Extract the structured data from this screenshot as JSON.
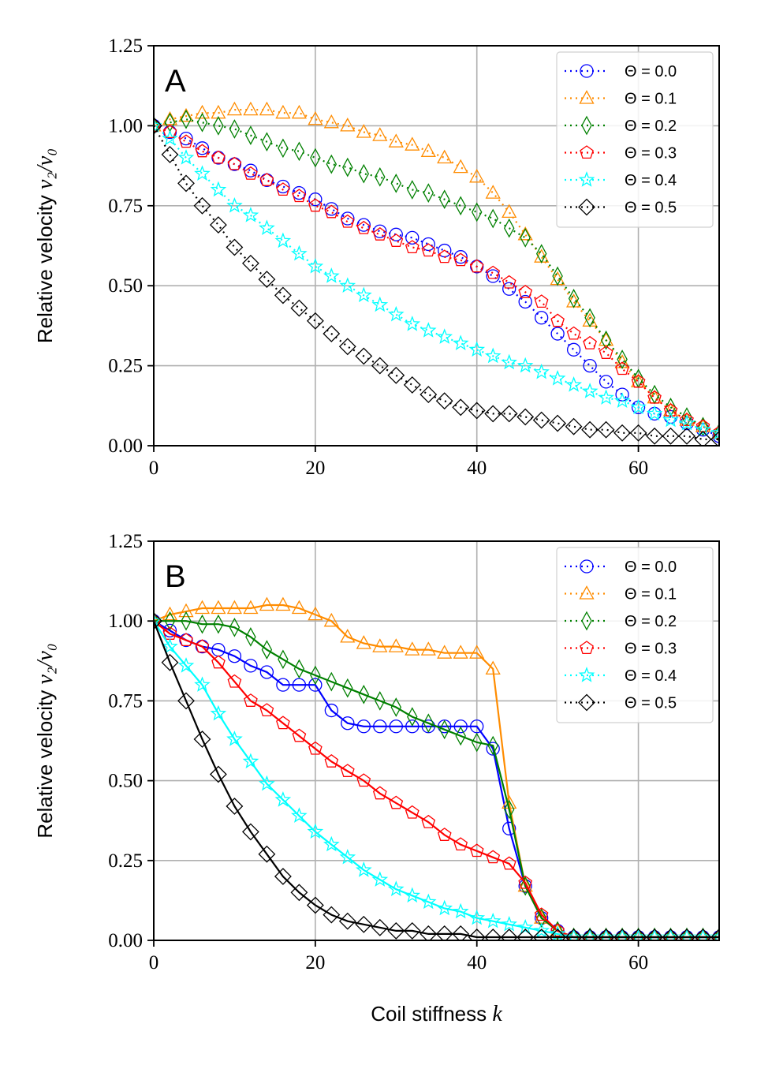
{
  "chart_data": [
    {
      "type": "line",
      "panel_label": "A",
      "ylabel_prefix": "Relative velocity ",
      "ylabel_math": "v₂/v₀",
      "xlabel_prefix": "",
      "xlabel_math": "",
      "xlim": [
        0,
        70
      ],
      "ylim": [
        0,
        1.25
      ],
      "xticks": [
        "0",
        "20",
        "40",
        "60"
      ],
      "xtick_values": [
        0,
        20,
        40,
        60
      ],
      "yticks": [
        "0.00",
        "0.25",
        "0.50",
        "0.75",
        "1.00",
        "1.25"
      ],
      "ytick_values": [
        0,
        0.25,
        0.5,
        0.75,
        1.0,
        1.25
      ],
      "grid": true,
      "legend_position": "top-right",
      "solid_fit": false,
      "x": [
        0,
        2,
        4,
        6,
        8,
        10,
        12,
        14,
        16,
        18,
        20,
        22,
        24,
        26,
        28,
        30,
        32,
        34,
        36,
        38,
        40,
        42,
        44,
        46,
        48,
        50,
        52,
        54,
        56,
        58,
        60,
        62,
        64,
        66,
        68,
        70
      ],
      "series": [
        {
          "name": "Θ = 0.0",
          "color": "#0000ff",
          "marker": "circle",
          "values": [
            1.0,
            0.98,
            0.96,
            0.93,
            0.9,
            0.88,
            0.86,
            0.83,
            0.81,
            0.79,
            0.77,
            0.74,
            0.71,
            0.69,
            0.67,
            0.66,
            0.65,
            0.63,
            0.61,
            0.59,
            0.56,
            0.53,
            0.49,
            0.45,
            0.4,
            0.35,
            0.3,
            0.25,
            0.2,
            0.16,
            0.12,
            0.1,
            0.09,
            0.07,
            0.05,
            0.03
          ]
        },
        {
          "name": "Θ = 0.1",
          "color": "#ff8c00",
          "marker": "triangle",
          "values": [
            1.0,
            1.02,
            1.03,
            1.04,
            1.04,
            1.05,
            1.05,
            1.05,
            1.04,
            1.04,
            1.02,
            1.01,
            1.0,
            0.98,
            0.97,
            0.95,
            0.94,
            0.92,
            0.9,
            0.87,
            0.84,
            0.79,
            0.73,
            0.66,
            0.59,
            0.52,
            0.45,
            0.39,
            0.33,
            0.26,
            0.2,
            0.15,
            0.11,
            0.08,
            0.06,
            0.04
          ]
        },
        {
          "name": "Θ = 0.2",
          "color": "#008000",
          "marker": "thin-diamond",
          "values": [
            1.0,
            1.01,
            1.02,
            1.01,
            1.0,
            0.99,
            0.97,
            0.95,
            0.93,
            0.92,
            0.9,
            0.88,
            0.87,
            0.85,
            0.84,
            0.82,
            0.8,
            0.79,
            0.77,
            0.75,
            0.73,
            0.71,
            0.68,
            0.65,
            0.6,
            0.53,
            0.46,
            0.4,
            0.33,
            0.27,
            0.21,
            0.16,
            0.12,
            0.09,
            0.06,
            0.04
          ]
        },
        {
          "name": "Θ = 0.3",
          "color": "#ff0000",
          "marker": "pentagon",
          "values": [
            1.0,
            0.98,
            0.95,
            0.92,
            0.9,
            0.88,
            0.85,
            0.83,
            0.8,
            0.78,
            0.75,
            0.73,
            0.7,
            0.68,
            0.66,
            0.64,
            0.62,
            0.61,
            0.59,
            0.58,
            0.56,
            0.54,
            0.51,
            0.48,
            0.45,
            0.39,
            0.35,
            0.32,
            0.29,
            0.24,
            0.2,
            0.15,
            0.11,
            0.08,
            0.06,
            0.04
          ]
        },
        {
          "name": "Θ = 0.4",
          "color": "#00ffff",
          "marker": "star",
          "values": [
            1.0,
            0.96,
            0.9,
            0.85,
            0.8,
            0.75,
            0.72,
            0.68,
            0.64,
            0.6,
            0.56,
            0.53,
            0.5,
            0.47,
            0.44,
            0.41,
            0.38,
            0.36,
            0.34,
            0.32,
            0.3,
            0.28,
            0.26,
            0.25,
            0.23,
            0.21,
            0.19,
            0.17,
            0.15,
            0.14,
            0.12,
            0.1,
            0.08,
            0.07,
            0.05,
            0.04
          ]
        },
        {
          "name": "Θ = 0.5",
          "color": "#000000",
          "marker": "diamond",
          "values": [
            1.0,
            0.91,
            0.82,
            0.75,
            0.69,
            0.62,
            0.57,
            0.52,
            0.47,
            0.43,
            0.39,
            0.35,
            0.31,
            0.28,
            0.25,
            0.22,
            0.19,
            0.16,
            0.14,
            0.12,
            0.11,
            0.1,
            0.1,
            0.09,
            0.08,
            0.07,
            0.06,
            0.05,
            0.05,
            0.04,
            0.04,
            0.03,
            0.03,
            0.03,
            0.02,
            0.02
          ]
        }
      ]
    },
    {
      "type": "line",
      "panel_label": "B",
      "ylabel_prefix": "Relative velocity ",
      "ylabel_math": "v₂/v₀",
      "xlabel_prefix": "Coil stiffness ",
      "xlabel_math": "k",
      "xlim": [
        0,
        70
      ],
      "ylim": [
        0,
        1.25
      ],
      "xticks": [
        "0",
        "20",
        "40",
        "60"
      ],
      "xtick_values": [
        0,
        20,
        40,
        60
      ],
      "yticks": [
        "0.00",
        "0.25",
        "0.50",
        "0.75",
        "1.00",
        "1.25"
      ],
      "ytick_values": [
        0,
        0.25,
        0.5,
        0.75,
        1.0,
        1.25
      ],
      "grid": true,
      "legend_position": "top-right",
      "solid_fit": true,
      "x": [
        0,
        2,
        4,
        6,
        8,
        10,
        12,
        14,
        16,
        18,
        20,
        22,
        24,
        26,
        28,
        30,
        32,
        34,
        36,
        38,
        40,
        42,
        44,
        46,
        48,
        50,
        52,
        54,
        56,
        58,
        60,
        62,
        64,
        66,
        68,
        70
      ],
      "series": [
        {
          "name": "Θ = 0.0",
          "color": "#0000ff",
          "marker": "circle",
          "values": [
            1.0,
            0.97,
            0.94,
            0.92,
            0.91,
            0.89,
            0.86,
            0.84,
            0.8,
            0.8,
            0.8,
            0.72,
            0.68,
            0.67,
            0.67,
            0.67,
            0.67,
            0.67,
            0.67,
            0.67,
            0.67,
            0.6,
            0.35,
            0.17,
            0.07,
            0.03,
            0.01,
            0.01,
            0.01,
            0.01,
            0.01,
            0.01,
            0.01,
            0.01,
            0.01,
            0.01
          ]
        },
        {
          "name": "Θ = 0.1",
          "color": "#ff8c00",
          "marker": "triangle",
          "values": [
            1.0,
            1.02,
            1.03,
            1.04,
            1.04,
            1.04,
            1.04,
            1.05,
            1.05,
            1.04,
            1.02,
            1.0,
            0.95,
            0.93,
            0.92,
            0.92,
            0.91,
            0.91,
            0.9,
            0.9,
            0.9,
            0.85,
            0.43,
            0.17,
            0.07,
            0.03,
            0.01,
            0.01,
            0.01,
            0.01,
            0.01,
            0.01,
            0.01,
            0.01,
            0.01,
            0.01
          ]
        },
        {
          "name": "Θ = 0.2",
          "color": "#008000",
          "marker": "thin-diamond",
          "values": [
            1.0,
            1.0,
            1.0,
            0.99,
            0.99,
            0.98,
            0.95,
            0.91,
            0.88,
            0.85,
            0.83,
            0.81,
            0.79,
            0.77,
            0.75,
            0.73,
            0.7,
            0.68,
            0.66,
            0.64,
            0.62,
            0.61,
            0.41,
            0.17,
            0.07,
            0.03,
            0.01,
            0.01,
            0.01,
            0.01,
            0.01,
            0.01,
            0.01,
            0.01,
            0.01,
            0.01
          ]
        },
        {
          "name": "Θ = 0.3",
          "color": "#ff0000",
          "marker": "pentagon",
          "values": [
            1.0,
            0.96,
            0.94,
            0.92,
            0.87,
            0.81,
            0.75,
            0.72,
            0.68,
            0.64,
            0.6,
            0.56,
            0.53,
            0.5,
            0.46,
            0.43,
            0.4,
            0.37,
            0.33,
            0.3,
            0.28,
            0.26,
            0.24,
            0.18,
            0.08,
            0.03,
            0.01,
            0.01,
            0.01,
            0.01,
            0.01,
            0.01,
            0.01,
            0.01,
            0.01,
            0.01
          ]
        },
        {
          "name": "Θ = 0.4",
          "color": "#00ffff",
          "marker": "star",
          "values": [
            1.0,
            0.92,
            0.86,
            0.8,
            0.71,
            0.63,
            0.56,
            0.49,
            0.44,
            0.39,
            0.34,
            0.3,
            0.26,
            0.22,
            0.19,
            0.16,
            0.14,
            0.12,
            0.1,
            0.09,
            0.07,
            0.06,
            0.05,
            0.04,
            0.03,
            0.02,
            0.01,
            0.01,
            0.01,
            0.01,
            0.01,
            0.01,
            0.01,
            0.01,
            0.01,
            0.01
          ]
        },
        {
          "name": "Θ = 0.5",
          "color": "#000000",
          "marker": "diamond",
          "values": [
            1.0,
            0.87,
            0.75,
            0.63,
            0.52,
            0.42,
            0.34,
            0.27,
            0.2,
            0.15,
            0.11,
            0.08,
            0.06,
            0.05,
            0.04,
            0.03,
            0.03,
            0.02,
            0.02,
            0.02,
            0.01,
            0.01,
            0.01,
            0.01,
            0.01,
            0.01,
            0.01,
            0.01,
            0.01,
            0.01,
            0.01,
            0.01,
            0.01,
            0.01,
            0.01,
            0.01
          ]
        }
      ]
    }
  ]
}
